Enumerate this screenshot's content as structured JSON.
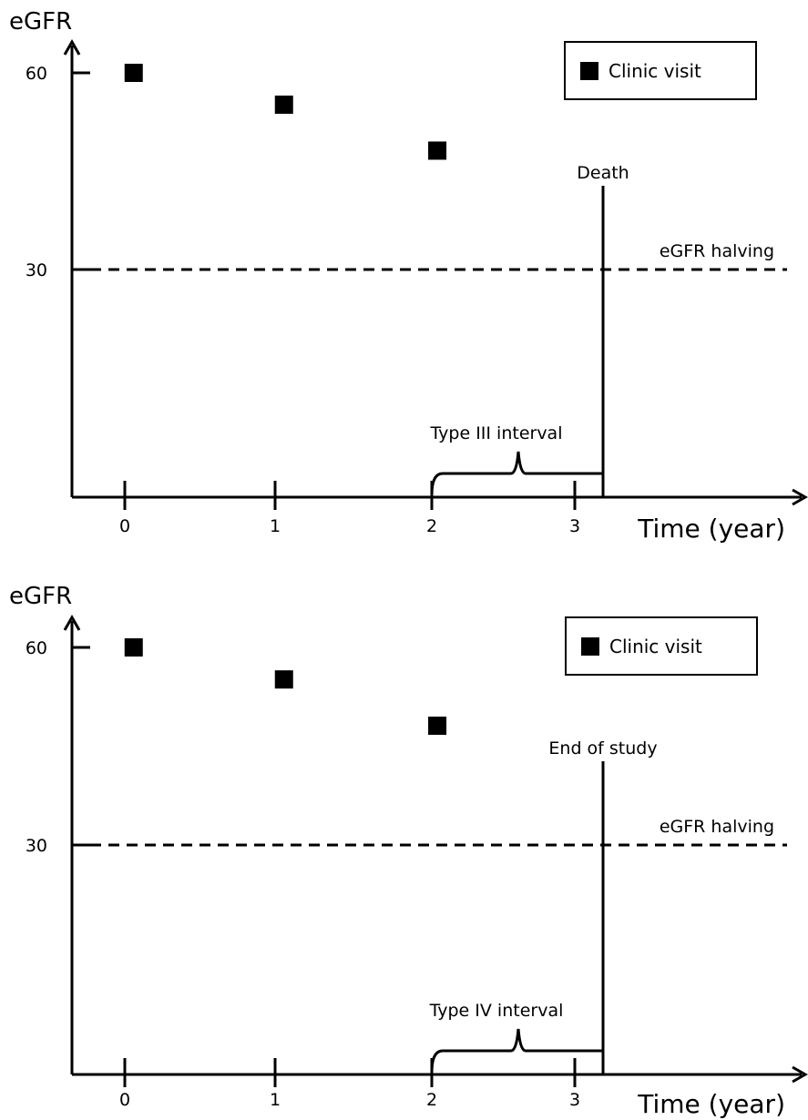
{
  "chart_data": [
    {
      "type": "scatter",
      "ylabel": "eGFR",
      "xlabel": "Time (year)",
      "x_ticks": [
        "0",
        "1",
        "2",
        "3"
      ],
      "y_ticks": [
        "60",
        "30"
      ],
      "series": [
        {
          "name": "Clinic visit",
          "x": [
            0.05,
            1.05,
            2.07
          ],
          "y": [
            60,
            55.5,
            49
          ]
        }
      ],
      "legend": {
        "label": "Clinic visit",
        "position": "top-right"
      },
      "reference_line": {
        "label": "eGFR halving",
        "y": 30,
        "style": "dashed"
      },
      "event": {
        "label": "Death",
        "x": 3.2
      },
      "interval": {
        "label": "Type III interval",
        "x_start": 2.0,
        "x_end": 3.2
      },
      "xlim": [
        -0.35,
        4.35
      ],
      "ylim": [
        0,
        65
      ]
    },
    {
      "type": "scatter",
      "ylabel": "eGFR",
      "xlabel": "Time (year)",
      "x_ticks": [
        "0",
        "1",
        "2",
        "3"
      ],
      "y_ticks": [
        "60",
        "30"
      ],
      "series": [
        {
          "name": "Clinic visit",
          "x": [
            0.05,
            1.05,
            2.07
          ],
          "y": [
            60,
            55.5,
            49
          ]
        }
      ],
      "legend": {
        "label": "Clinic visit",
        "position": "top-right"
      },
      "reference_line": {
        "label": "eGFR halving",
        "y": 30,
        "style": "dashed"
      },
      "event": {
        "label": "End of study",
        "x": 3.2
      },
      "interval": {
        "label": "Type IV interval",
        "x_start": 2.0,
        "x_end": 3.2
      },
      "xlim": [
        -0.35,
        4.35
      ],
      "ylim": [
        0,
        65
      ]
    }
  ]
}
